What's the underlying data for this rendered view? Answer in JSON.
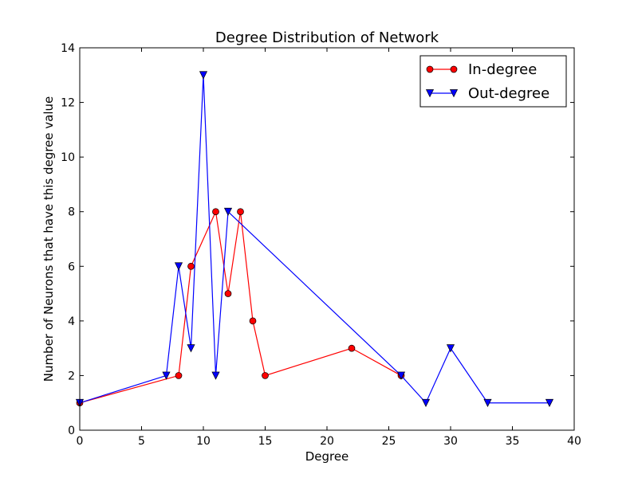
{
  "chart_data": {
    "type": "line",
    "title": "Degree Distribution of Network",
    "xlabel": "Degree",
    "ylabel": "Number of Neurons that have this degree value",
    "xlim": [
      0,
      40
    ],
    "ylim": [
      0,
      14
    ],
    "xticks": [
      0,
      5,
      10,
      15,
      20,
      25,
      30,
      35,
      40
    ],
    "yticks": [
      0,
      2,
      4,
      6,
      8,
      10,
      12,
      14
    ],
    "grid": false,
    "legend_position": "top-right",
    "series": [
      {
        "name": "In-degree",
        "color": "#ff0000",
        "marker": "circle",
        "x": [
          0,
          8,
          9,
          11,
          12,
          13,
          14,
          15,
          22,
          26
        ],
        "y": [
          1,
          2,
          6,
          8,
          5,
          8,
          4,
          2,
          3,
          2
        ]
      },
      {
        "name": "Out-degree",
        "color": "#0000ff",
        "marker": "triangle-down",
        "x": [
          0,
          7,
          8,
          9,
          10,
          11,
          12,
          26,
          28,
          30,
          33,
          38
        ],
        "y": [
          1,
          2,
          6,
          3,
          13,
          2,
          8,
          2,
          1,
          3,
          1,
          1
        ]
      }
    ]
  }
}
